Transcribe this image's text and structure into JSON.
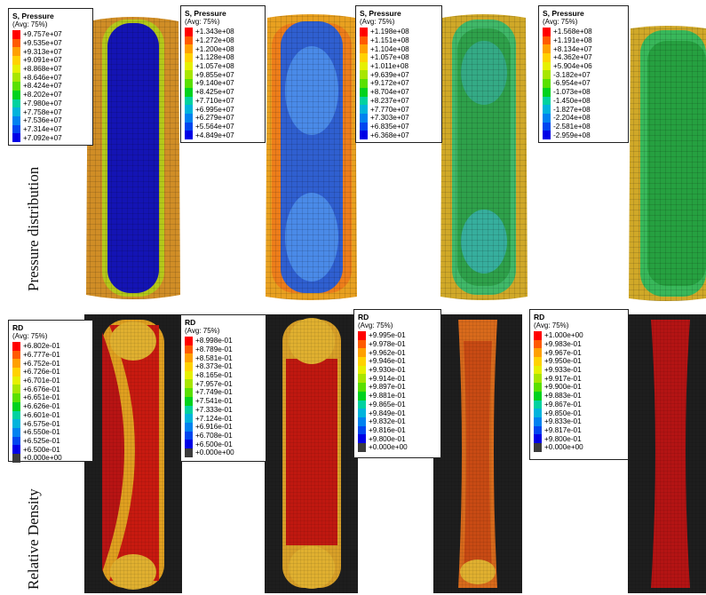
{
  "row_labels": {
    "top": "Pressure distribution",
    "bottom": "Relative Density"
  },
  "pressure_legends": [
    {
      "title": "S, Pressure",
      "subtitle": "(Avg: 75%)",
      "values": [
        "+9.757e+07",
        "+9.535e+07",
        "+9.313e+07",
        "+9.091e+07",
        "+8.868e+07",
        "+8.646e+07",
        "+8.424e+07",
        "+8.202e+07",
        "+7.980e+07",
        "+7.758e+07",
        "+7.536e+07",
        "+7.314e+07",
        "+7.092e+07"
      ]
    },
    {
      "title": "S, Pressure",
      "subtitle": "(Avg: 75%)",
      "values": [
        "+1.343e+08",
        "+1.272e+08",
        "+1.200e+08",
        "+1.128e+08",
        "+1.057e+08",
        "+9.855e+07",
        "+9.140e+07",
        "+8.425e+07",
        "+7.710e+07",
        "+6.995e+07",
        "+6.279e+07",
        "+5.564e+07",
        "+4.849e+07"
      ]
    },
    {
      "title": "S, Pressure",
      "subtitle": "(Avg: 75%)",
      "values": [
        "+1.198e+08",
        "+1.151e+08",
        "+1.104e+08",
        "+1.057e+08",
        "+1.011e+08",
        "+9.639e+07",
        "+9.172e+07",
        "+8.704e+07",
        "+8.237e+07",
        "+7.770e+07",
        "+7.303e+07",
        "+6.835e+07",
        "+6.368e+07"
      ]
    },
    {
      "title": "S, Pressure",
      "subtitle": "(Avg: 75%)",
      "values": [
        "+1.568e+08",
        "+1.191e+08",
        "+8.134e+07",
        "+4.362e+07",
        "+5.904e+06",
        "-3.182e+07",
        "-6.954e+07",
        "-1.073e+08",
        "-1.450e+08",
        "-1.827e+08",
        "-2.204e+08",
        "-2.581e+08",
        "-2.959e+08"
      ]
    }
  ],
  "density_legends": [
    {
      "title": "RD",
      "subtitle": "(Avg: 75%)",
      "values": [
        "+6.802e-01",
        "+6.777e-01",
        "+6.752e-01",
        "+6.726e-01",
        "+6.701e-01",
        "+6.676e-01",
        "+6.651e-01",
        "+6.626e-01",
        "+6.601e-01",
        "+6.575e-01",
        "+6.550e-01",
        "+6.525e-01",
        "+6.500e-01",
        "+0.000e+00"
      ]
    },
    {
      "title": "RD",
      "subtitle": "(Avg: 75%)",
      "values": [
        "+8.998e-01",
        "+8.789e-01",
        "+8.581e-01",
        "+8.373e-01",
        "+8.165e-01",
        "+7.957e-01",
        "+7.749e-01",
        "+7.541e-01",
        "+7.333e-01",
        "+7.124e-01",
        "+6.916e-01",
        "+6.708e-01",
        "+6.500e-01",
        "+0.000e+00"
      ]
    },
    {
      "title": "RD",
      "subtitle": "(Avg: 75%)",
      "values": [
        "+9.995e-01",
        "+9.978e-01",
        "+9.962e-01",
        "+9.946e-01",
        "+9.930e-01",
        "+9.914e-01",
        "+9.897e-01",
        "+9.881e-01",
        "+9.865e-01",
        "+9.849e-01",
        "+9.832e-01",
        "+9.816e-01",
        "+9.800e-01",
        "+0.000e+00"
      ]
    },
    {
      "title": "RD",
      "subtitle": "(Avg: 75%)",
      "values": [
        "+1.000e+00",
        "+9.983e-01",
        "+9.967e-01",
        "+9.950e-01",
        "+9.933e-01",
        "+9.917e-01",
        "+9.900e-01",
        "+9.883e-01",
        "+9.867e-01",
        "+9.850e-01",
        "+9.833e-01",
        "+9.817e-01",
        "+9.800e-01",
        "+0.000e+00"
      ]
    }
  ],
  "colors": {
    "contour_scale": [
      "#ff0000",
      "#ff5a00",
      "#ffa000",
      "#ffd200",
      "#e6f000",
      "#a8e600",
      "#5ae000",
      "#00d21e",
      "#00d2a0",
      "#00b4dc",
      "#0082f0",
      "#0046f0",
      "#0000e6"
    ],
    "zero_band": "#3c3c3c",
    "mesh_dark": "#1e1e1e"
  }
}
